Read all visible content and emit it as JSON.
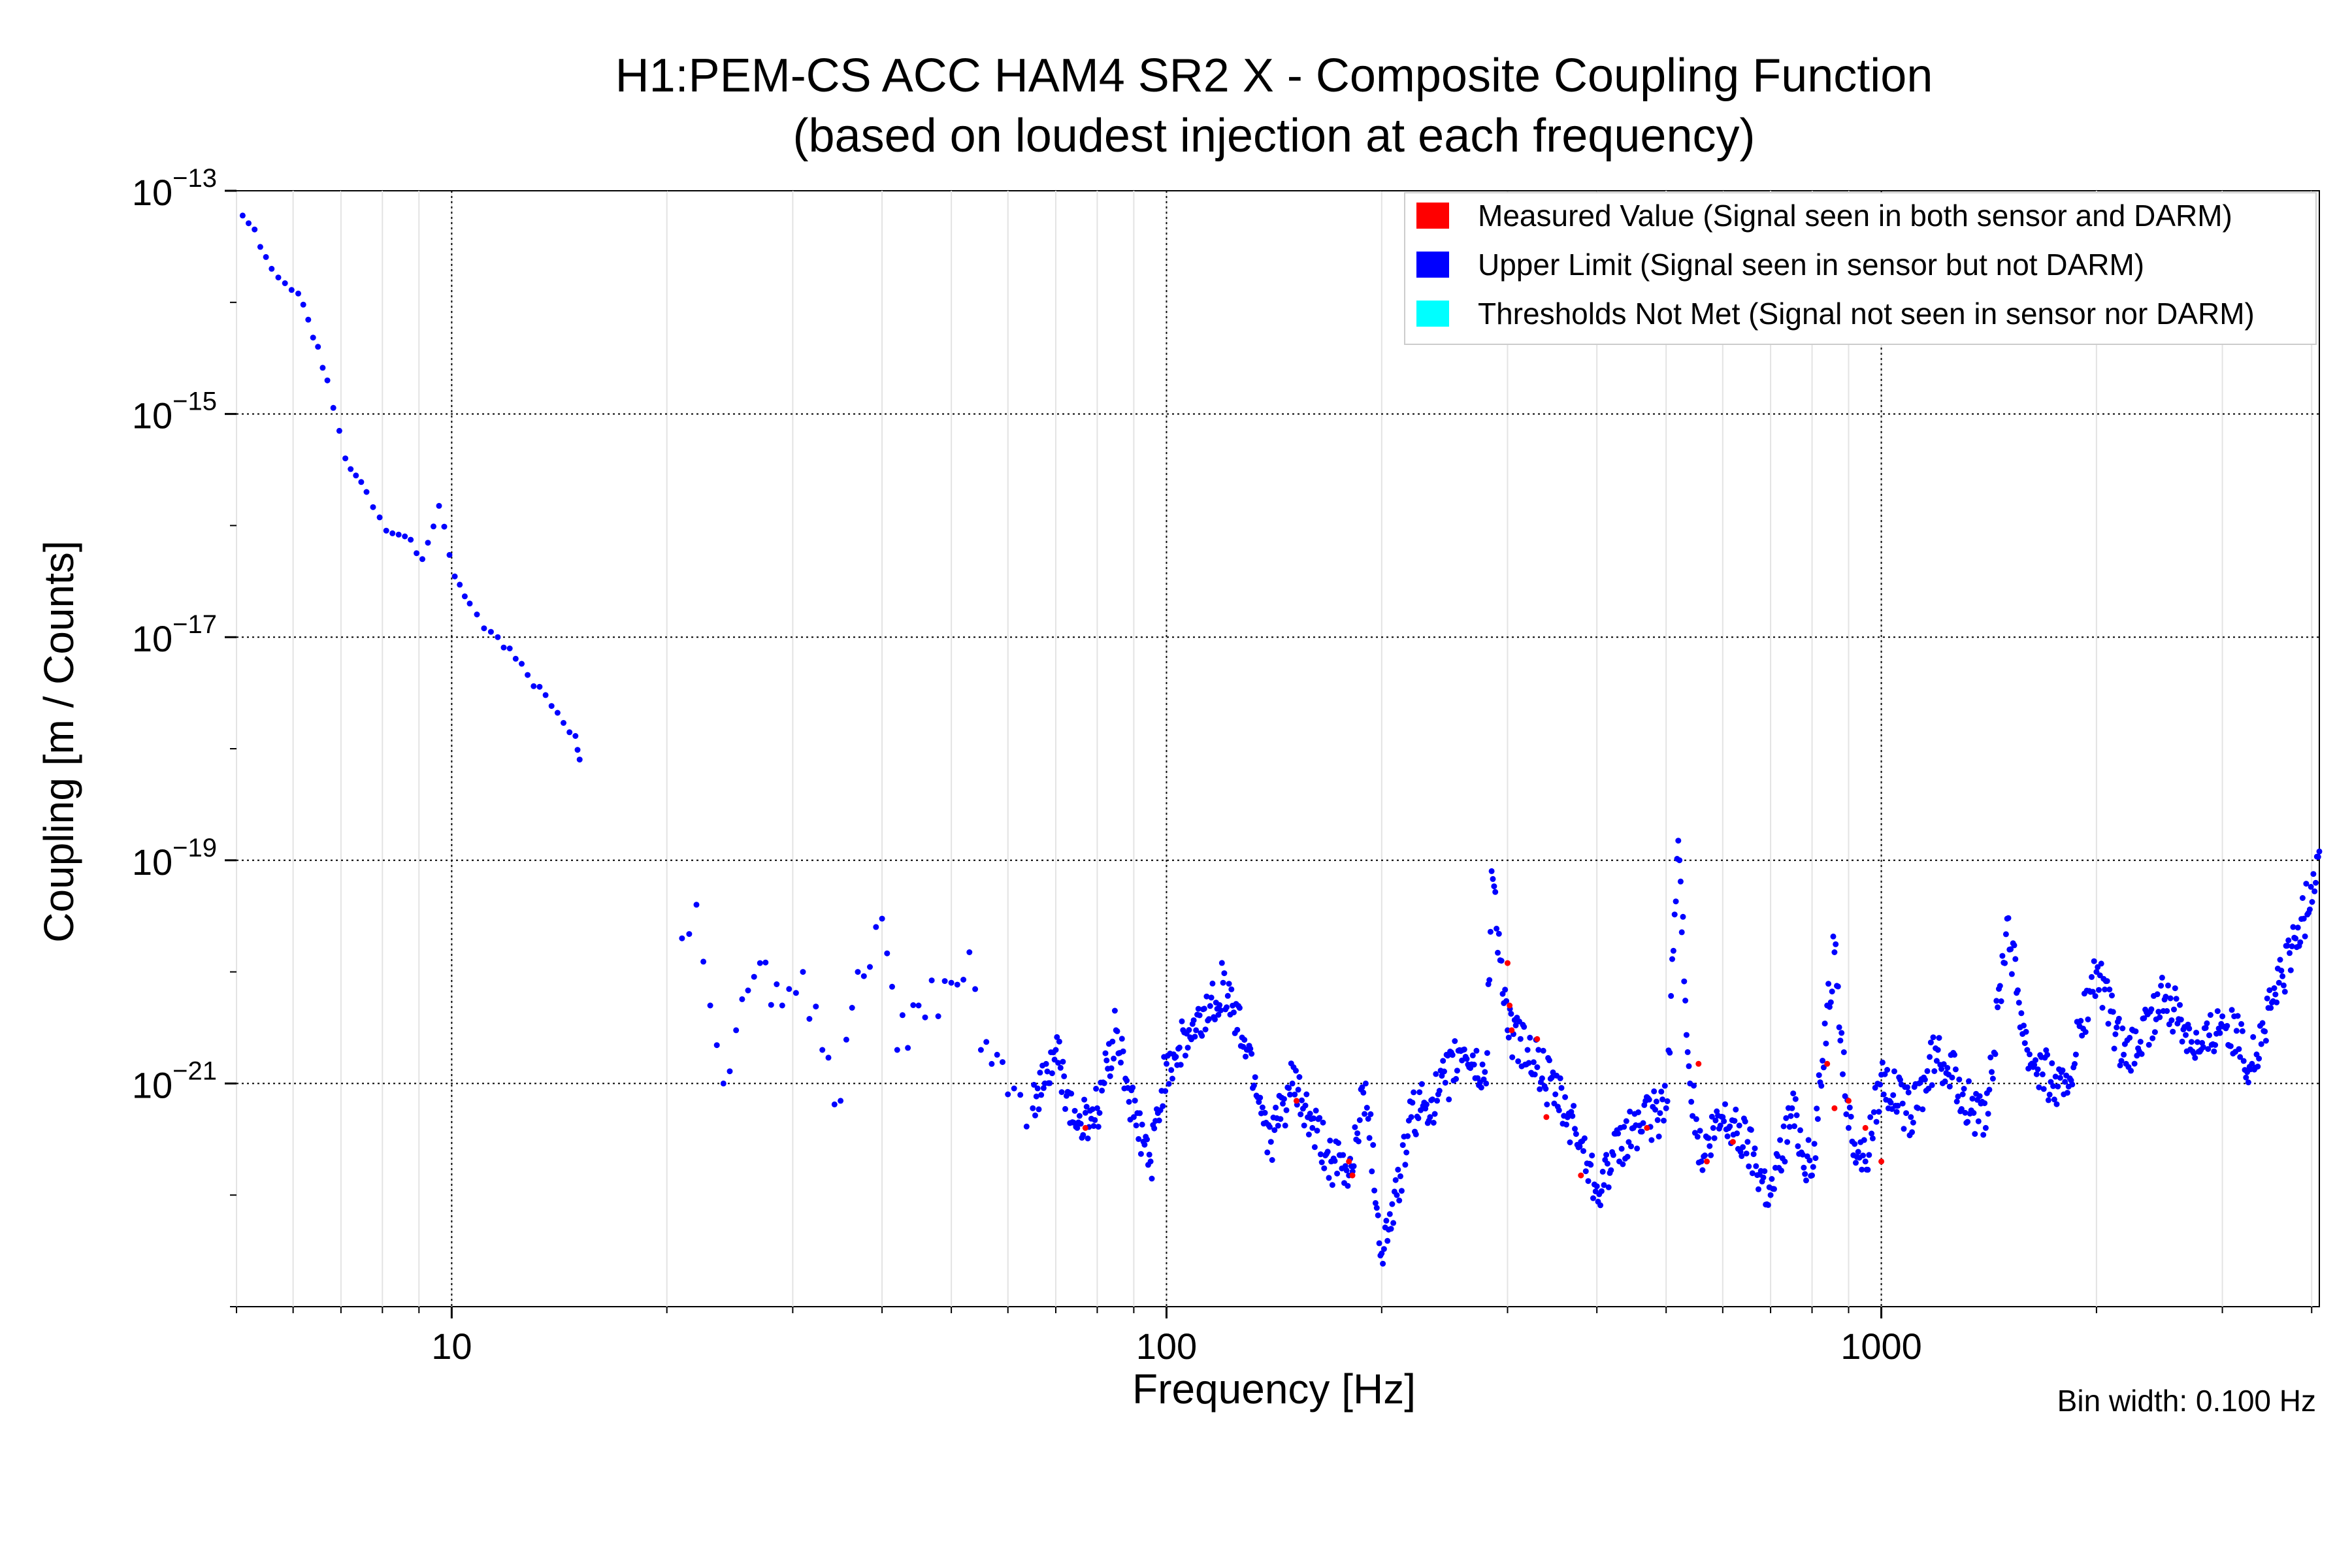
{
  "chart_data": {
    "type": "scatter",
    "title": "H1:PEM-CS ACC HAM4 SR2 X - Composite Coupling Function",
    "subtitle": "(based on loudest injection at each frequency)",
    "xlabel": "Frequency [Hz]",
    "ylabel": "Coupling [m / Counts]",
    "xscale": "log",
    "yscale": "log",
    "xlim": [
      5.0,
      4100
    ],
    "ylim": [
      1e-23,
      1e-13
    ],
    "x_ticks": [
      {
        "value": 10,
        "label": "10"
      },
      {
        "value": 100,
        "label": "100"
      },
      {
        "value": 1000,
        "label": "1000"
      }
    ],
    "y_ticks": [
      {
        "value": 1e-13,
        "base": "10",
        "exp": "−13"
      },
      {
        "value": 1e-15,
        "base": "10",
        "exp": "−15"
      },
      {
        "value": 1e-17,
        "base": "10",
        "exp": "−17"
      },
      {
        "value": 1e-19,
        "base": "10",
        "exp": "−19"
      },
      {
        "value": 1e-21,
        "base": "10",
        "exp": "−21"
      }
    ],
    "grid": true,
    "legend_position": "top-right",
    "legend": [
      {
        "label": "Measured Value (Signal seen in both sensor and DARM)",
        "color": "#ff0000"
      },
      {
        "label": "Upper Limit (Signal seen in sensor but not DARM)",
        "color": "#0000ff"
      },
      {
        "label": "Thresholds Not Met (Signal not seen in sensor nor DARM)",
        "color": "#00ffff"
      }
    ],
    "annotation": "Bin width: 0.100 Hz",
    "series": [
      {
        "name": "Upper Limit",
        "color": "#0000ff",
        "points": [
          [
            5.1,
            6e-14
          ],
          [
            5.3,
            4.5e-14
          ],
          [
            5.6,
            2e-14
          ],
          [
            6.1,
            1.2e-14
          ],
          [
            6.3,
            7e-15
          ],
          [
            6.5,
            4e-15
          ],
          [
            6.7,
            2e-15
          ],
          [
            7.1,
            4e-16
          ],
          [
            7.6,
            2e-16
          ],
          [
            8.1,
            9e-17
          ],
          [
            8.6,
            8e-17
          ],
          [
            9.1,
            5e-17
          ],
          [
            9.6,
            1.5e-16
          ],
          [
            10.1,
            3.5e-17
          ],
          [
            10.6,
            2e-17
          ],
          [
            11.1,
            1.2e-17
          ],
          [
            11.6,
            1e-17
          ],
          [
            14.9,
            1.3e-18
          ],
          [
            15.1,
            8e-19
          ],
          [
            21,
            2e-20
          ],
          [
            22,
            4e-20
          ],
          [
            23,
            5e-21
          ],
          [
            24,
            1e-21
          ],
          [
            25,
            3e-21
          ],
          [
            27,
            1.2e-20
          ],
          [
            29,
            5e-21
          ],
          [
            31,
            1e-20
          ],
          [
            33,
            2e-21
          ],
          [
            35,
            7e-22
          ],
          [
            37,
            1e-20
          ],
          [
            40,
            3e-20
          ],
          [
            42,
            2e-21
          ],
          [
            45,
            5e-21
          ],
          [
            50,
            8e-21
          ],
          [
            53,
            1.5e-20
          ],
          [
            55,
            2e-21
          ],
          [
            60,
            8e-22
          ],
          [
            65,
            6e-22
          ],
          [
            70,
            2e-21
          ],
          [
            75,
            4e-22
          ],
          [
            80,
            6e-22
          ],
          [
            85,
            3e-21
          ],
          [
            90,
            5e-22
          ],
          [
            95,
            2e-22
          ],
          [
            100,
            1.5e-21
          ],
          [
            110,
            3e-21
          ],
          [
            120,
            8e-21
          ],
          [
            130,
            2e-21
          ],
          [
            140,
            3e-22
          ],
          [
            150,
            1e-21
          ],
          [
            160,
            4e-22
          ],
          [
            170,
            2e-22
          ],
          [
            180,
            1.5e-22
          ],
          [
            190,
            1e-21
          ],
          [
            200,
            3e-23
          ],
          [
            210,
            1e-22
          ],
          [
            220,
            5e-22
          ],
          [
            240,
            8e-22
          ],
          [
            260,
            2e-21
          ],
          [
            280,
            1e-21
          ],
          [
            285,
            8e-20
          ],
          [
            300,
            3e-21
          ],
          [
            320,
            2e-21
          ],
          [
            350,
            8e-22
          ],
          [
            380,
            3e-22
          ],
          [
            400,
            1.2e-22
          ],
          [
            450,
            4e-22
          ],
          [
            500,
            6e-22
          ],
          [
            520,
            1.5e-19
          ],
          [
            540,
            1e-21
          ],
          [
            560,
            2e-22
          ],
          [
            600,
            5e-22
          ],
          [
            650,
            3e-22
          ],
          [
            700,
            1e-22
          ],
          [
            750,
            6e-22
          ],
          [
            800,
            1.5e-22
          ],
          [
            840,
            5e-21
          ],
          [
            860,
            1.5e-20
          ],
          [
            900,
            4e-22
          ],
          [
            950,
            2e-22
          ],
          [
            1000,
            1.2e-21
          ],
          [
            1100,
            5e-22
          ],
          [
            1200,
            2e-21
          ],
          [
            1300,
            8e-22
          ],
          [
            1400,
            4e-22
          ],
          [
            1500,
            3e-20
          ],
          [
            1600,
            2e-21
          ],
          [
            1800,
            8e-22
          ],
          [
            2000,
            1e-20
          ],
          [
            2200,
            1.5e-21
          ],
          [
            2500,
            6e-21
          ],
          [
            2800,
            2e-21
          ],
          [
            3000,
            4e-21
          ],
          [
            3300,
            1.5e-21
          ],
          [
            3600,
            8e-21
          ],
          [
            3900,
            3e-20
          ],
          [
            4100,
            1.2e-19
          ]
        ]
      },
      {
        "name": "Measured Value",
        "color": "#ff0000",
        "points": [
          [
            77,
            4e-22
          ],
          [
            152,
            7e-22
          ],
          [
            180,
            2e-22
          ],
          [
            182,
            1.5e-22
          ],
          [
            300,
            1.2e-20
          ],
          [
            302,
            5e-21
          ],
          [
            304,
            3e-21
          ],
          [
            330,
            2.5e-21
          ],
          [
            340,
            5e-22
          ],
          [
            380,
            1.5e-22
          ],
          [
            470,
            4e-22
          ],
          [
            555,
            1.5e-21
          ],
          [
            570,
            2e-22
          ],
          [
            620,
            3e-22
          ],
          [
            840,
            1.5e-21
          ],
          [
            860,
            6e-22
          ],
          [
            900,
            7e-22
          ],
          [
            950,
            4e-22
          ],
          [
            1000,
            2e-22
          ]
        ]
      }
    ]
  }
}
